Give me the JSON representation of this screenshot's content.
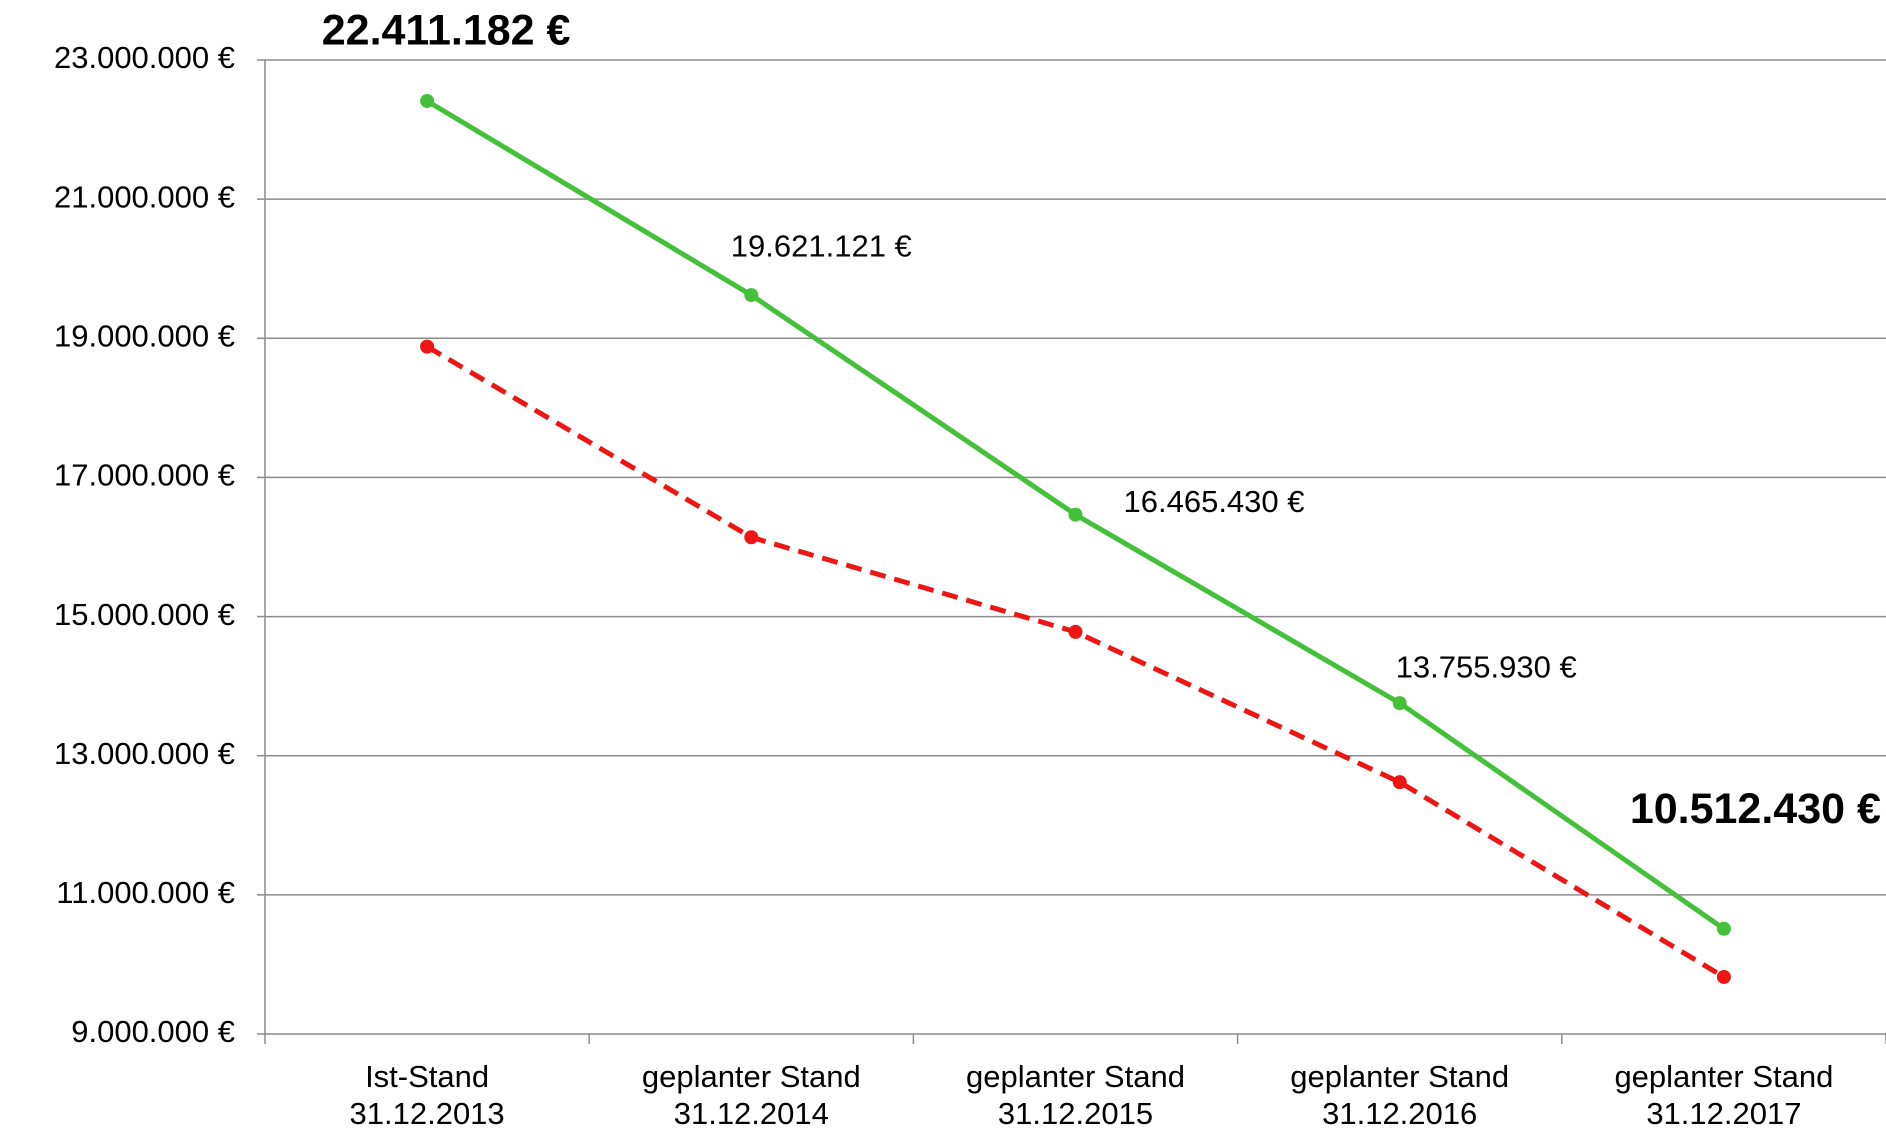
{
  "chart_data": {
    "type": "line",
    "categories": [
      [
        "Ist-Stand",
        "31.12.2013"
      ],
      [
        "geplanter Stand",
        "31.12.2014"
      ],
      [
        "geplanter Stand",
        "31.12.2015"
      ],
      [
        "geplanter Stand",
        "31.12.2016"
      ],
      [
        "geplanter Stand",
        "31.12.2017"
      ]
    ],
    "series": [
      {
        "color": "#44c03a",
        "dash": false,
        "values": [
          22411182,
          19621121,
          16465430,
          13755930,
          10512430
        ],
        "value_labels": [
          "22.411.182 €",
          "19.621.121 €",
          "16.465.430 €",
          "13.755.930 €",
          "10.512.430 €"
        ],
        "label_bold": [
          true,
          false,
          false,
          false,
          true
        ]
      },
      {
        "color": "#ee1515",
        "dash": true,
        "values": [
          18880000,
          16140000,
          14780000,
          12620000,
          9820000
        ]
      }
    ],
    "ylim": [
      9000000,
      23000000
    ],
    "yticks": [
      {
        "value": 9000000,
        "label": "9.000.000 €"
      },
      {
        "value": 11000000,
        "label": "11.000.000 €"
      },
      {
        "value": 13000000,
        "label": "13.000.000 €"
      },
      {
        "value": 15000000,
        "label": "15.000.000 €"
      },
      {
        "value": 17000000,
        "label": "17.000.000 €"
      },
      {
        "value": 19000000,
        "label": "19.000.000 €"
      },
      {
        "value": 21000000,
        "label": "21.000.000 €"
      },
      {
        "value": 23000000,
        "label": "23.000.000 €"
      }
    ],
    "grid": true
  }
}
